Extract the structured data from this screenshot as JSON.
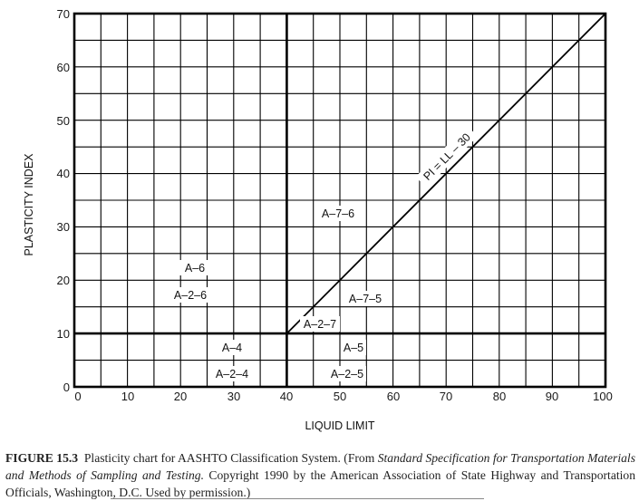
{
  "chart_data": {
    "type": "line",
    "title": "Plasticity chart for AASHTO Classification System",
    "xlabel": "LIQUID LIMIT",
    "ylabel": "PLASTICITY INDEX",
    "xlim": [
      0,
      100
    ],
    "ylim": [
      0,
      70
    ],
    "grid": true,
    "grid_spacing": {
      "x": 5,
      "y": 5
    },
    "x_ticks": [
      0,
      10,
      20,
      30,
      40,
      50,
      60,
      70,
      80,
      90,
      100
    ],
    "y_ticks": [
      0,
      10,
      20,
      30,
      40,
      50,
      60,
      70
    ],
    "boundaries": [
      {
        "name": "LL = 40",
        "x": [
          40,
          40
        ],
        "y": [
          0,
          70
        ],
        "style": "bold"
      },
      {
        "name": "PI = 10",
        "x": [
          0,
          100
        ],
        "y": [
          10,
          10
        ],
        "style": "bold"
      }
    ],
    "series": [
      {
        "name": "PI = LL – 30",
        "x": [
          40,
          100
        ],
        "y": [
          10,
          70
        ]
      }
    ],
    "annotations": [
      {
        "text": "A–6",
        "x": 23,
        "y": 22.2
      },
      {
        "text": "A–2–6",
        "x": 21.5,
        "y": 17.3
      },
      {
        "text": "A–4",
        "x": 29.5,
        "y": 7.5
      },
      {
        "text": "A–2–4",
        "x": 29.5,
        "y": 2.5
      },
      {
        "text": "A–7–6",
        "x": 49.5,
        "y": 32.2
      },
      {
        "text": "A–7–5",
        "x": 54.5,
        "y": 16.8
      },
      {
        "text": "A–2–7",
        "x": 45,
        "y": 11.5
      },
      {
        "text": "A–5",
        "x": 51.5,
        "y": 7.5
      },
      {
        "text": "A–2–5",
        "x": 51.5,
        "y": 2.5
      },
      {
        "text": "PI = LL – 30",
        "x": 66,
        "y": 37,
        "rotation": -45
      }
    ]
  },
  "axes": {
    "x_title": "LIQUID LIMIT",
    "y_title": "PLASTICITY INDEX",
    "x_ticks": [
      "0",
      "10",
      "20",
      "30",
      "40",
      "50",
      "60",
      "70",
      "80",
      "90",
      "100"
    ],
    "y_ticks": [
      "0",
      "10",
      "20",
      "30",
      "40",
      "50",
      "60",
      "70"
    ]
  },
  "zones": {
    "a6": "A–6",
    "a26": "A–2–6",
    "a4": "A–4",
    "a24": "A–2–4",
    "a76": "A–7–6",
    "a75": "A–7–5",
    "a27": "A–2–7",
    "a5": "A–5",
    "a25": "A–2–5",
    "line_label": "PI = LL – 30"
  },
  "caption": {
    "figure_label": "FIGURE 15.3",
    "text_1": " Plasticity chart for AASHTO Classification System. (From ",
    "italic_1": "Standard Specification for Transportation Materials and Methods of Sampling and Testing.",
    "text_2": " Copyright 1990 by the American Association of State Highway and Transportation Officials, Washington, D.C. Used by permission.)"
  }
}
